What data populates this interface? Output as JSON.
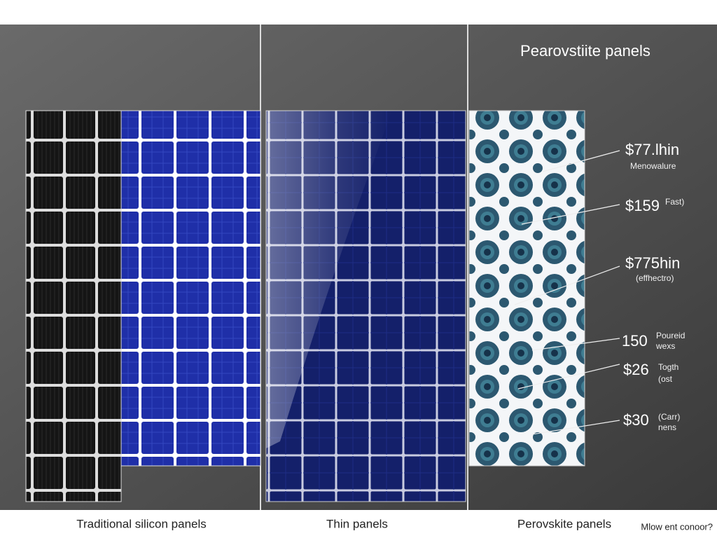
{
  "header": {
    "title": "Pearovstiite panels"
  },
  "callouts": [
    {
      "price": "$77.lhin",
      "below": "Menowalure"
    },
    {
      "price": "$159",
      "side": "Fast)"
    },
    {
      "price": "$775hin",
      "below": "(effhectro)"
    },
    {
      "price": "150",
      "side": "Poureid",
      "below": "wexs"
    },
    {
      "price": "$26",
      "side": "Togth",
      "below": "(ost"
    },
    {
      "price": "$30",
      "side": "(Carr)",
      "below": "nens"
    }
  ],
  "labels": [
    "Traditional silicon panels",
    "Thin panels",
    "Perovskite panels"
  ],
  "footer_note": "Mlow ent conoor?"
}
